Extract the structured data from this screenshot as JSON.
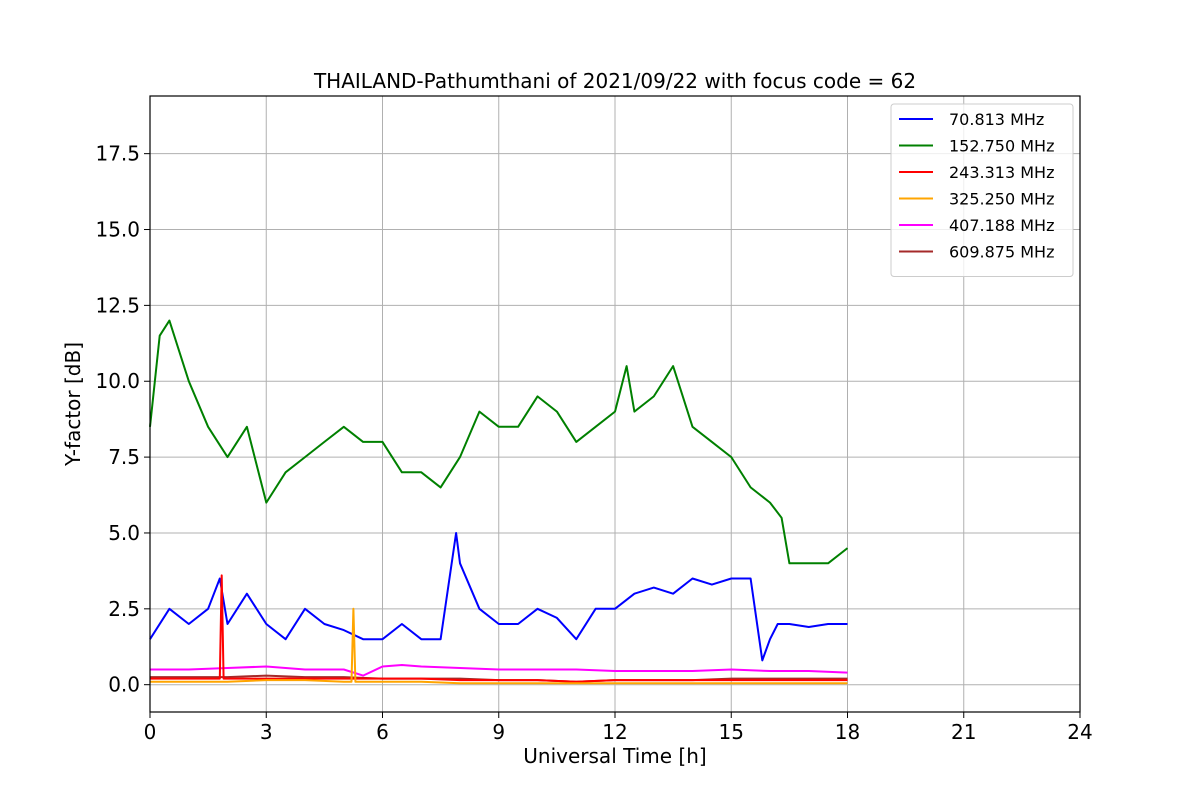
{
  "chart_data": {
    "type": "line",
    "title": "THAILAND-Pathumthani of 2021/09/22 with focus code = 62",
    "xlabel": "Universal Time [h]",
    "ylabel": "Y-factor [dB]",
    "xlim": [
      0,
      24
    ],
    "ylim": [
      -0.9,
      19.4
    ],
    "xticks": [
      0,
      3,
      6,
      9,
      12,
      15,
      18,
      21,
      24
    ],
    "xtick_labels": [
      "0",
      "3",
      "6",
      "9",
      "12",
      "15",
      "18",
      "21",
      "24"
    ],
    "yticks": [
      0,
      2.5,
      5,
      7.5,
      10,
      12.5,
      15,
      17.5
    ],
    "ytick_labels": [
      "0.0",
      "2.5",
      "5.0",
      "7.5",
      "10.0",
      "12.5",
      "15.0",
      "17.5"
    ],
    "grid": true,
    "legend_position": "top-right",
    "series": [
      {
        "name": " 70.813 MHz",
        "color": "#0000ff",
        "x": [
          0.0,
          0.5,
          1.0,
          1.5,
          1.8,
          2.0,
          2.5,
          3.0,
          3.5,
          4.0,
          4.5,
          5.0,
          5.5,
          6.0,
          6.5,
          7.0,
          7.5,
          7.9,
          8.0,
          8.5,
          9.0,
          9.5,
          10.0,
          10.5,
          11.0,
          11.5,
          12.0,
          12.5,
          13.0,
          13.5,
          14.0,
          14.5,
          15.0,
          15.5,
          15.8,
          16.0,
          16.2,
          16.5,
          17.0,
          17.5,
          18.0
        ],
        "y": [
          1.5,
          2.5,
          2.0,
          2.5,
          3.5,
          2.0,
          3.0,
          2.0,
          1.5,
          2.5,
          2.0,
          1.8,
          1.5,
          1.5,
          2.0,
          1.5,
          1.5,
          5.0,
          4.0,
          2.5,
          2.0,
          2.0,
          2.5,
          2.2,
          1.5,
          2.5,
          2.5,
          3.0,
          3.2,
          3.0,
          3.5,
          3.3,
          3.5,
          3.5,
          0.8,
          1.5,
          2.0,
          2.0,
          1.9,
          2.0,
          2.0
        ]
      },
      {
        "name": "152.750 MHz",
        "color": "#008000",
        "x": [
          0.0,
          0.25,
          0.5,
          0.75,
          1.0,
          1.5,
          2.0,
          2.5,
          3.0,
          3.5,
          4.0,
          4.5,
          5.0,
          5.5,
          6.0,
          6.5,
          7.0,
          7.5,
          8.0,
          8.5,
          9.0,
          9.5,
          10.0,
          10.5,
          11.0,
          11.5,
          12.0,
          12.3,
          12.5,
          13.0,
          13.5,
          14.0,
          14.5,
          15.0,
          15.5,
          16.0,
          16.3,
          16.5,
          17.0,
          17.5,
          18.0
        ],
        "y": [
          8.5,
          11.5,
          12.0,
          11.0,
          10.0,
          8.5,
          7.5,
          8.5,
          6.0,
          7.0,
          7.5,
          8.0,
          8.5,
          8.0,
          8.0,
          7.0,
          7.0,
          6.5,
          7.5,
          9.0,
          8.5,
          8.5,
          9.5,
          9.0,
          8.0,
          8.5,
          9.0,
          10.5,
          9.0,
          9.5,
          10.5,
          8.5,
          8.0,
          7.5,
          6.5,
          6.0,
          5.5,
          4.0,
          4.0,
          4.0,
          4.5
        ]
      },
      {
        "name": "243.313 MHz",
        "color": "#ff0000",
        "x": [
          0,
          1,
          1.8,
          1.85,
          1.9,
          3,
          4,
          5,
          6,
          7,
          8,
          9,
          10,
          11,
          12,
          13,
          14,
          15,
          16,
          17,
          18
        ],
        "y": [
          0.2,
          0.2,
          0.2,
          3.6,
          0.2,
          0.2,
          0.2,
          0.2,
          0.2,
          0.2,
          0.15,
          0.15,
          0.15,
          0.1,
          0.15,
          0.15,
          0.15,
          0.15,
          0.15,
          0.15,
          0.15
        ]
      },
      {
        "name": "325.250 MHz",
        "color": "#ffa500",
        "x": [
          0,
          1,
          2,
          3,
          4,
          5,
          5.2,
          5.25,
          5.3,
          6,
          7,
          8,
          9,
          10,
          11,
          12,
          13,
          14,
          15,
          16,
          17,
          18
        ],
        "y": [
          0.1,
          0.1,
          0.1,
          0.15,
          0.15,
          0.1,
          0.1,
          2.5,
          0.1,
          0.1,
          0.1,
          0.05,
          0.05,
          0.05,
          0.05,
          0.05,
          0.05,
          0.05,
          0.05,
          0.05,
          0.05,
          0.05
        ]
      },
      {
        "name": "407.188 MHz",
        "color": "#ff00ff",
        "x": [
          0,
          1,
          2,
          3,
          4,
          5,
          5.5,
          6,
          6.5,
          7,
          8,
          9,
          10,
          11,
          12,
          13,
          14,
          15,
          16,
          17,
          18
        ],
        "y": [
          0.5,
          0.5,
          0.55,
          0.6,
          0.5,
          0.5,
          0.3,
          0.6,
          0.65,
          0.6,
          0.55,
          0.5,
          0.5,
          0.5,
          0.45,
          0.45,
          0.45,
          0.5,
          0.45,
          0.45,
          0.4
        ]
      },
      {
        "name": "609.875 MHz",
        "color": "#a52a2a",
        "x": [
          0,
          1,
          2,
          3,
          4,
          5,
          6,
          7,
          8,
          9,
          10,
          11,
          12,
          13,
          14,
          15,
          16,
          17,
          18
        ],
        "y": [
          0.25,
          0.25,
          0.25,
          0.3,
          0.25,
          0.25,
          0.2,
          0.2,
          0.2,
          0.15,
          0.15,
          0.1,
          0.15,
          0.15,
          0.15,
          0.2,
          0.2,
          0.2,
          0.2
        ]
      }
    ]
  }
}
